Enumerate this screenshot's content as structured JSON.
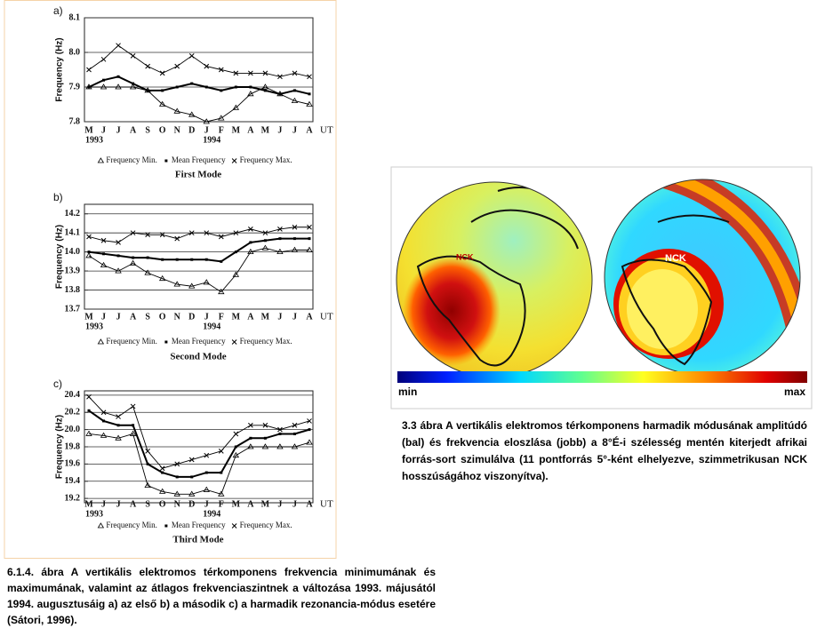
{
  "chart_data": [
    {
      "type": "line",
      "panel_label": "a)",
      "title": "First Mode",
      "ylabel": "Frequency (Hz)",
      "xlabel": "UT",
      "categories": [
        "M",
        "J",
        "J",
        "A",
        "S",
        "O",
        "N",
        "D",
        "J",
        "F",
        "M",
        "A",
        "M",
        "J",
        "J",
        "A"
      ],
      "year_labels": [
        "1993",
        "1994"
      ],
      "ylim": [
        7.8,
        8.1
      ],
      "yticks": [
        7.8,
        7.9,
        {
          "value": 8,
          "label": "8.0"
        },
        8.1
      ],
      "grid": true,
      "series": [
        {
          "name": "Frequency Min.",
          "color": "#000000",
          "marker": "triangle",
          "values": [
            7.9,
            7.9,
            7.9,
            7.9,
            7.89,
            7.85,
            7.83,
            7.82,
            7.8,
            7.81,
            7.84,
            7.88,
            7.9,
            7.88,
            7.86,
            7.85
          ]
        },
        {
          "name": "Mean Frequency",
          "color": "#000000",
          "marker": "square",
          "values": [
            7.9,
            7.92,
            7.93,
            7.91,
            7.89,
            7.89,
            7.9,
            7.91,
            7.9,
            7.89,
            7.9,
            7.9,
            7.89,
            7.88,
            7.89,
            7.88
          ]
        },
        {
          "name": "Frequency Max.",
          "color": "#000000",
          "marker": "x",
          "values": [
            7.95,
            7.98,
            8.02,
            7.99,
            7.96,
            7.94,
            7.96,
            7.99,
            7.96,
            7.95,
            7.94,
            7.94,
            7.94,
            7.93,
            7.94,
            7.93
          ]
        }
      ]
    },
    {
      "type": "line",
      "panel_label": "b)",
      "title": "Second Mode",
      "ylabel": "Frequency (Hz)",
      "xlabel": "UT",
      "categories": [
        "M",
        "J",
        "J",
        "A",
        "S",
        "O",
        "N",
        "D",
        "J",
        "F",
        "M",
        "A",
        "M",
        "J",
        "J",
        "A"
      ],
      "year_labels": [
        "1993",
        "1994"
      ],
      "ylim": [
        13.7,
        14.25
      ],
      "yticks": [
        13.7,
        13.8,
        13.9,
        {
          "value": 14,
          "label": "14.0"
        },
        14.1,
        14.2
      ],
      "grid": true,
      "series": [
        {
          "name": "Frequency Min.",
          "color": "#000000",
          "marker": "triangle",
          "values": [
            13.98,
            13.93,
            13.9,
            13.94,
            13.89,
            13.86,
            13.83,
            13.82,
            13.84,
            13.79,
            13.88,
            14.0,
            14.02,
            14.0,
            14.01,
            14.01
          ]
        },
        {
          "name": "Mean Frequency",
          "color": "#000000",
          "marker": "square",
          "values": [
            14.0,
            13.99,
            13.98,
            13.97,
            13.97,
            13.96,
            13.96,
            13.96,
            13.96,
            13.95,
            14.0,
            14.05,
            14.06,
            14.07,
            14.07,
            14.07
          ]
        },
        {
          "name": "Frequency Max.",
          "color": "#000000",
          "marker": "x",
          "values": [
            14.08,
            14.06,
            14.05,
            14.1,
            14.09,
            14.09,
            14.07,
            14.1,
            14.1,
            14.08,
            14.1,
            14.12,
            14.1,
            14.12,
            14.13,
            14.13
          ]
        }
      ]
    },
    {
      "type": "line",
      "panel_label": "c)",
      "title": "Third Mode",
      "ylabel": "Frequency (Hz)",
      "xlabel": "UT",
      "categories": [
        "M",
        "J",
        "J",
        "A",
        "S",
        "O",
        "N",
        "D",
        "J",
        "F",
        "M",
        "A",
        "M",
        "J",
        "J",
        "A"
      ],
      "year_labels": [
        "1993",
        "1994"
      ],
      "ylim": [
        19.15,
        20.45
      ],
      "yticks": [
        19.2,
        19.4,
        19.6,
        19.8,
        {
          "value": 20,
          "label": "20.0"
        },
        20.2,
        20.4
      ],
      "grid": true,
      "series": [
        {
          "name": "Frequency Min.",
          "color": "#000000",
          "marker": "triangle",
          "values": [
            19.95,
            19.93,
            19.9,
            19.95,
            19.35,
            19.28,
            19.25,
            19.25,
            19.3,
            19.25,
            19.7,
            19.8,
            19.8,
            19.8,
            19.8,
            19.85
          ]
        },
        {
          "name": "Mean Frequency",
          "color": "#000000",
          "marker": "square",
          "values": [
            20.22,
            20.1,
            20.05,
            20.05,
            19.6,
            19.5,
            19.45,
            19.45,
            19.5,
            19.5,
            19.8,
            19.9,
            19.9,
            19.95,
            19.95,
            20.0
          ]
        },
        {
          "name": "Frequency Max.",
          "color": "#000000",
          "marker": "x",
          "values": [
            20.38,
            20.2,
            20.15,
            20.27,
            19.75,
            19.55,
            19.6,
            19.65,
            19.7,
            19.75,
            19.95,
            20.05,
            20.05,
            20.0,
            20.05,
            20.1
          ]
        }
      ]
    }
  ],
  "map_figure": {
    "labels": [
      "NCK",
      "NCK"
    ],
    "colorbar": {
      "min_label": "min",
      "max_label": "max"
    },
    "caption": "3.3 ábra A vertikális elektromos térkomponens harmadik módusának amplitúdó (bal) és frekvencia eloszlása (jobb) a 8°É-i szélesség mentén kiterjedt afrikai forrás-sort szimulálva (11 pontforrás 5°-ként elhelyezve, szimmetrikusan NCK hosszúságához viszonyítva)."
  },
  "caption": "6.1.4. ábra A vertikális elektromos térkomponens frekvencia minimumának és maximumának, valamint az átlagos frekvenciaszintnek a változása 1993. májusától 1994. augusztusáig a) az első b) a második c) a harmadik rezonancia-módus esetére (Sátori, 1996)."
}
